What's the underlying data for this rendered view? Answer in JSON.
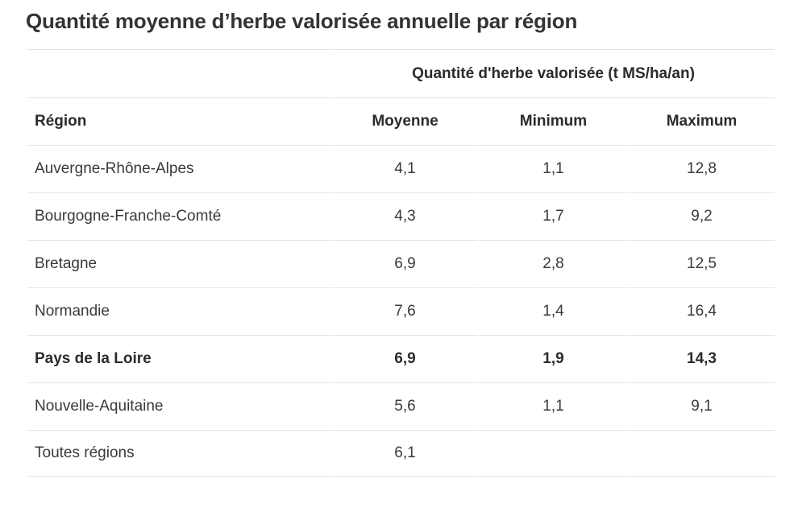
{
  "page": {
    "title": "Quantité moyenne d’herbe valorisée annuelle par région"
  },
  "table": {
    "group_header": "Quantité d'herbe valorisée (t MS/ha/an)",
    "columns": {
      "region": "Région",
      "moyenne": "Moyenne",
      "minimum": "Minimum",
      "maximum": "Maximum"
    },
    "rows": [
      {
        "region": "Auvergne-Rhône-Alpes",
        "moyenne": "4,1",
        "minimum": "1,1",
        "maximum": "12,8",
        "highlight": false
      },
      {
        "region": "Bourgogne-Franche-Comté",
        "moyenne": "4,3",
        "minimum": "1,7",
        "maximum": "9,2",
        "highlight": false
      },
      {
        "region": "Bretagne",
        "moyenne": "6,9",
        "minimum": "2,8",
        "maximum": "12,5",
        "highlight": false
      },
      {
        "region": "Normandie",
        "moyenne": "7,6",
        "minimum": "1,4",
        "maximum": "16,4",
        "highlight": false
      },
      {
        "region": "Pays de la Loire",
        "moyenne": "6,9",
        "minimum": "1,9",
        "maximum": "14,3",
        "highlight": true
      },
      {
        "region": "Nouvelle-Aquitaine",
        "moyenne": "5,6",
        "minimum": "1,1",
        "maximum": "9,1",
        "highlight": false
      },
      {
        "region": "Toutes régions",
        "moyenne": "6,1",
        "minimum": "",
        "maximum": "",
        "highlight": false
      }
    ]
  },
  "colors": {
    "text": "#2b2b2b",
    "divider": "#e4e4e4",
    "background": "#ffffff"
  }
}
